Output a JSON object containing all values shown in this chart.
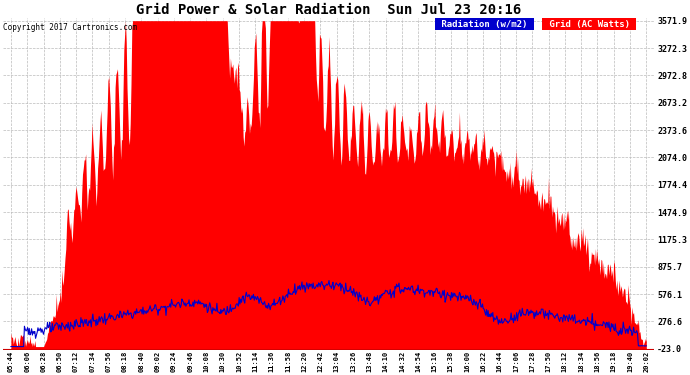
{
  "title": "Grid Power & Solar Radiation  Sun Jul 23 20:16",
  "copyright": "Copyright 2017 Cartronics.com",
  "legend_radiation": "Radiation (w/m2)",
  "legend_grid": "Grid (AC Watts)",
  "ymin": -23.0,
  "ymax": 3571.9,
  "yticks": [
    3571.9,
    3272.3,
    2972.8,
    2673.2,
    2373.6,
    2074.0,
    1774.4,
    1474.9,
    1175.3,
    875.7,
    576.1,
    276.6,
    -23.0
  ],
  "bg_color": "#ffffff",
  "plot_bg_color": "#ffffff",
  "grid_color": "#aaaaaa",
  "radiation_color": "#0000cc",
  "grid_ac_color": "#ff0000",
  "xtick_labels": [
    "05:44",
    "06:06",
    "06:28",
    "06:50",
    "07:12",
    "07:34",
    "07:56",
    "08:18",
    "08:40",
    "09:02",
    "09:24",
    "09:46",
    "10:08",
    "10:30",
    "10:52",
    "11:14",
    "11:36",
    "11:58",
    "12:20",
    "12:42",
    "13:04",
    "13:26",
    "13:48",
    "14:10",
    "14:32",
    "14:54",
    "15:16",
    "15:38",
    "16:00",
    "16:22",
    "16:44",
    "17:06",
    "17:28",
    "17:50",
    "18:12",
    "18:34",
    "18:56",
    "19:18",
    "19:40",
    "20:02"
  ],
  "n_points": 800
}
